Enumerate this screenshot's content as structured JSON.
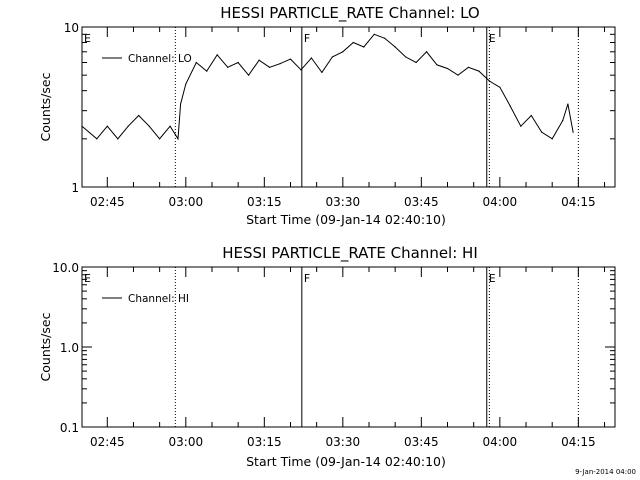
{
  "chart_data": [
    {
      "type": "line",
      "title": "HESSI PARTICLE_RATE Channel: LO",
      "xlabel": "Start Time (09-Jan-14 02:40:10)",
      "ylabel": "Counts/sec",
      "yscale": "log",
      "ylim": [
        1,
        10
      ],
      "y_ticks": [
        "1",
        "10"
      ],
      "xlim": [
        "02:40:10",
        "04:22:00"
      ],
      "x_ticks": [
        "02:45",
        "03:00",
        "03:15",
        "03:30",
        "03:45",
        "04:00",
        "04:15"
      ],
      "grid": false,
      "legend": "top-left",
      "series": [
        {
          "name": "Channel: LO",
          "x": [
            "02:40:10",
            "02:43:00",
            "02:45:00",
            "02:47:00",
            "02:49:00",
            "02:51:00",
            "02:53:00",
            "02:55:00",
            "02:57:00",
            "02:58:30",
            "02:59:00",
            "03:00:00",
            "03:02:00",
            "03:04:00",
            "03:06:00",
            "03:08:00",
            "03:10:00",
            "03:12:00",
            "03:14:00",
            "03:16:00",
            "03:18:00",
            "03:20:00",
            "03:22:00",
            "03:24:00",
            "03:26:00",
            "03:28:00",
            "03:30:00",
            "03:32:00",
            "03:34:00",
            "03:36:00",
            "03:38:00",
            "03:40:00",
            "03:42:00",
            "03:44:00",
            "03:46:00",
            "03:48:00",
            "03:50:00",
            "03:52:00",
            "03:54:00",
            "03:56:00",
            "03:58:00",
            "04:00:00",
            "04:02:00",
            "04:04:00",
            "04:06:00",
            "04:08:00",
            "04:10:00",
            "04:12:00",
            "04:13:00",
            "04:14:00"
          ],
          "y": [
            2.4,
            2.0,
            2.4,
            2.0,
            2.4,
            2.8,
            2.4,
            2.0,
            2.4,
            2.0,
            3.3,
            4.4,
            6.0,
            5.3,
            6.7,
            5.6,
            6.0,
            5.0,
            6.2,
            5.6,
            5.9,
            6.3,
            5.4,
            6.4,
            5.2,
            6.5,
            7.0,
            8.0,
            7.5,
            9.0,
            8.5,
            7.5,
            6.5,
            6.0,
            7.0,
            5.8,
            5.5,
            5.0,
            5.6,
            5.3,
            4.6,
            4.2,
            3.2,
            2.4,
            2.8,
            2.2,
            2.0,
            2.6,
            3.3,
            2.2
          ]
        }
      ],
      "annotations": [
        {
          "label": "E",
          "x": "02:40:10"
        },
        {
          "label": "F",
          "x": "03:22:10"
        },
        {
          "label": "E",
          "x": "03:57:30"
        }
      ],
      "markers_dotted": [
        "02:58:00",
        "03:58:00",
        "04:15:00"
      ]
    },
    {
      "type": "line",
      "title": "HESSI PARTICLE_RATE Channel: HI",
      "xlabel": "Start Time (09-Jan-14 02:40:10)",
      "ylabel": "Counts/sec",
      "yscale": "log",
      "ylim": [
        0.1,
        10
      ],
      "y_ticks": [
        "0.1",
        "1.0",
        "10.0"
      ],
      "xlim": [
        "02:40:10",
        "04:22:00"
      ],
      "x_ticks": [
        "02:45",
        "03:00",
        "03:15",
        "03:30",
        "03:45",
        "04:00",
        "04:15"
      ],
      "grid": false,
      "legend": "top-left",
      "series": [
        {
          "name": "Channel: HI",
          "x": [],
          "y": []
        }
      ],
      "annotations": [
        {
          "label": "E",
          "x": "02:40:10"
        },
        {
          "label": "F",
          "x": "03:22:10"
        },
        {
          "label": "E",
          "x": "03:57:30"
        }
      ],
      "markers_dotted": [
        "02:58:00",
        "03:58:00",
        "04:15:00"
      ]
    }
  ],
  "footer": "9-Jan-2014 04:00"
}
